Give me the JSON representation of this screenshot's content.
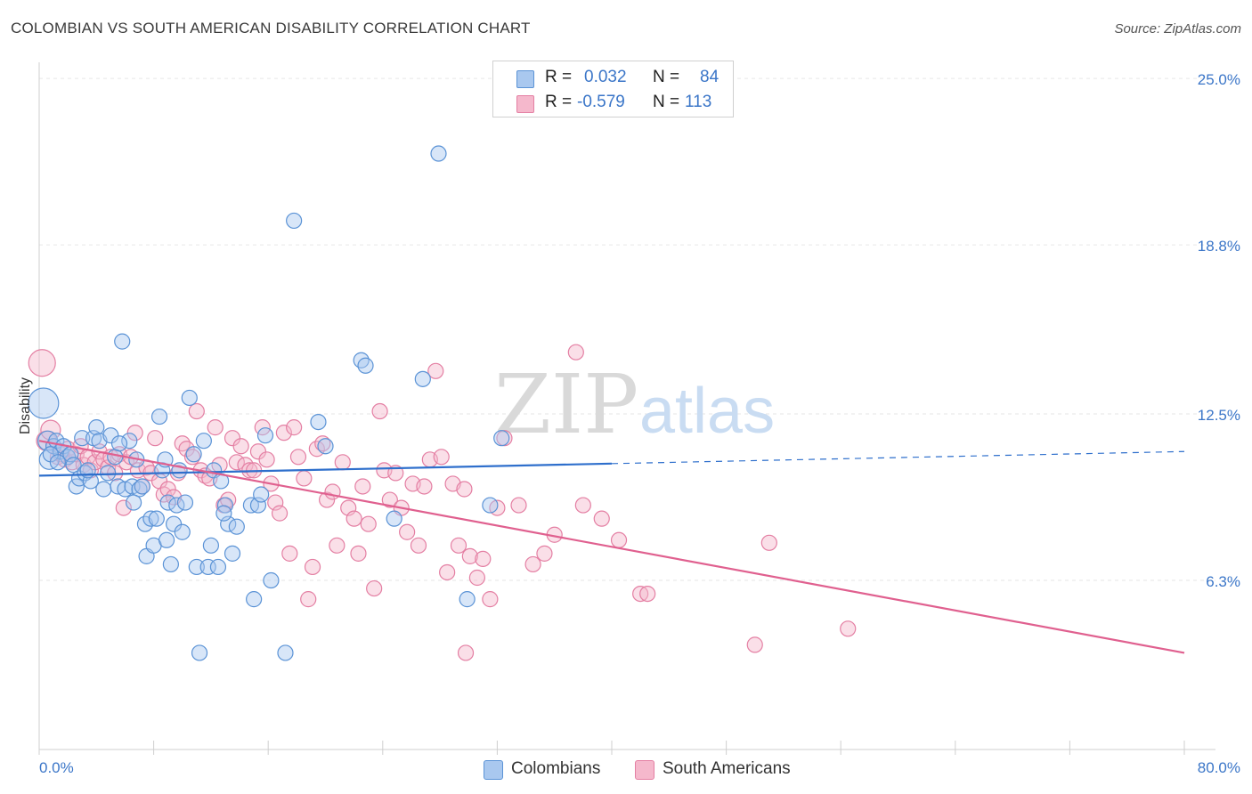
{
  "header": {
    "title": "COLOMBIAN VS SOUTH AMERICAN DISABILITY CORRELATION CHART",
    "source": "Source: ZipAtlas.com"
  },
  "watermark": {
    "zip": "ZIP",
    "atlas": "atlas"
  },
  "legend_top": {
    "rows": [
      {
        "r_label": "R =",
        "r_value": "0.032",
        "n_label": "N =",
        "n_value": "84"
      },
      {
        "r_label": "R =",
        "r_value": "-0.579",
        "n_label": "N =",
        "n_value": "113"
      }
    ]
  },
  "legend_bottom": {
    "items": [
      {
        "label": "Colombians"
      },
      {
        "label": "South Americans"
      }
    ]
  },
  "colors": {
    "blue_fill": "#a9c8ef",
    "blue_stroke": "#5b93d6",
    "blue_line": "#2e6fcc",
    "pink_fill": "#f5b8cc",
    "pink_stroke": "#e47fa3",
    "pink_line": "#e0608f",
    "axis_text": "#3b76c8",
    "grid": "#e6e6e6"
  },
  "chart_data": {
    "type": "scatter",
    "title": "COLOMBIAN VS SOUTH AMERICAN DISABILITY CORRELATION CHART",
    "ylabel": "Disability",
    "xlabel": "",
    "xlim": [
      0,
      80
    ],
    "ylim": [
      0,
      25.6
    ],
    "x_tick_labels": [
      "0.0%",
      "80.0%"
    ],
    "y_tick_values": [
      6.3,
      12.5,
      18.8,
      25.0
    ],
    "y_tick_labels": [
      "6.3%",
      "12.5%",
      "18.8%",
      "25.0%"
    ],
    "grid": true,
    "legend_placement": "top-center",
    "series": [
      {
        "name": "Colombians",
        "r": 0.032,
        "n": 84,
        "trend": {
          "x": [
            0,
            40
          ],
          "y": [
            10.2,
            10.65
          ],
          "dashed_to_x": 80,
          "dashed_y": 11.1
        },
        "points": [
          [
            0.3,
            12.9,
            4
          ],
          [
            0.6,
            11.5,
            2
          ],
          [
            0.7,
            10.8,
            2
          ],
          [
            1.0,
            11.3,
            1
          ],
          [
            1.2,
            11.5,
            1
          ],
          [
            1.5,
            11.1,
            1
          ],
          [
            1.7,
            11.3,
            1
          ],
          [
            2.0,
            10.9,
            1
          ],
          [
            2.2,
            11.0,
            1
          ],
          [
            2.4,
            10.6,
            1
          ],
          [
            2.6,
            9.8,
            1
          ],
          [
            2.8,
            10.1,
            1
          ],
          [
            3.0,
            11.6,
            1
          ],
          [
            3.2,
            10.3,
            1
          ],
          [
            3.6,
            10.0,
            1
          ],
          [
            3.8,
            11.6,
            1
          ],
          [
            4.0,
            12.0,
            1
          ],
          [
            4.2,
            11.5,
            1
          ],
          [
            4.5,
            9.7,
            1
          ],
          [
            4.8,
            10.3,
            1
          ],
          [
            5.0,
            11.7,
            1
          ],
          [
            5.3,
            10.9,
            1
          ],
          [
            5.5,
            9.8,
            1
          ],
          [
            5.8,
            15.2,
            1
          ],
          [
            6.0,
            9.7,
            1
          ],
          [
            6.3,
            11.5,
            1
          ],
          [
            6.5,
            9.8,
            1
          ],
          [
            6.8,
            10.8,
            1
          ],
          [
            7.0,
            9.7,
            1
          ],
          [
            7.2,
            9.8,
            1
          ],
          [
            7.4,
            8.4,
            1
          ],
          [
            7.5,
            7.2,
            1
          ],
          [
            7.8,
            8.6,
            1
          ],
          [
            8.0,
            7.6,
            1
          ],
          [
            8.2,
            8.6,
            1
          ],
          [
            8.4,
            12.4,
            1
          ],
          [
            8.6,
            10.4,
            1
          ],
          [
            8.8,
            10.8,
            1
          ],
          [
            9.0,
            9.2,
            1
          ],
          [
            9.2,
            6.9,
            1
          ],
          [
            9.4,
            8.4,
            1
          ],
          [
            9.6,
            9.1,
            1
          ],
          [
            9.8,
            10.4,
            1
          ],
          [
            10.0,
            8.1,
            1
          ],
          [
            10.2,
            9.2,
            1
          ],
          [
            10.5,
            13.1,
            1
          ],
          [
            10.8,
            11.0,
            1
          ],
          [
            11.0,
            6.8,
            1
          ],
          [
            11.2,
            3.6,
            1
          ],
          [
            11.5,
            11.5,
            1
          ],
          [
            11.8,
            6.8,
            1
          ],
          [
            12.0,
            7.6,
            1
          ],
          [
            12.2,
            10.4,
            1
          ],
          [
            12.5,
            6.8,
            1
          ],
          [
            12.7,
            10.0,
            1
          ],
          [
            13.0,
            9.1,
            1
          ],
          [
            13.2,
            8.4,
            1
          ],
          [
            13.5,
            7.3,
            1
          ],
          [
            13.8,
            8.3,
            1
          ],
          [
            14.8,
            9.1,
            1
          ],
          [
            15.0,
            5.6,
            1
          ],
          [
            15.3,
            9.1,
            1
          ],
          [
            15.5,
            9.5,
            1
          ],
          [
            15.8,
            11.7,
            1
          ],
          [
            16.2,
            6.3,
            1
          ],
          [
            17.2,
            3.6,
            1
          ],
          [
            17.8,
            19.7,
            1
          ],
          [
            19.5,
            12.2,
            1
          ],
          [
            20.0,
            11.3,
            1
          ],
          [
            22.5,
            14.5,
            1
          ],
          [
            22.8,
            14.3,
            1
          ],
          [
            24.8,
            8.6,
            1
          ],
          [
            26.8,
            13.8,
            1
          ],
          [
            27.9,
            22.2,
            1
          ],
          [
            29.9,
            5.6,
            1
          ],
          [
            31.5,
            9.1,
            1
          ],
          [
            32.3,
            11.6,
            1
          ],
          [
            0.8,
            11.0,
            1
          ],
          [
            1.3,
            10.7,
            1
          ],
          [
            3.4,
            10.4,
            1
          ],
          [
            5.6,
            11.4,
            1
          ],
          [
            6.6,
            9.2,
            1
          ],
          [
            8.9,
            7.8,
            1
          ],
          [
            12.9,
            8.8,
            1
          ]
        ]
      },
      {
        "name": "South Americans",
        "r": -0.579,
        "n": 113,
        "trend": {
          "x": [
            0,
            80
          ],
          "y": [
            11.5,
            3.6
          ]
        },
        "points": [
          [
            0.2,
            14.4,
            3
          ],
          [
            0.5,
            11.5,
            2
          ],
          [
            0.8,
            11.9,
            2
          ],
          [
            1.0,
            11.3,
            1
          ],
          [
            1.3,
            10.9,
            1
          ],
          [
            1.5,
            11.0,
            1
          ],
          [
            1.8,
            10.8,
            1
          ],
          [
            2.0,
            11.2,
            1
          ],
          [
            2.3,
            10.7,
            1
          ],
          [
            2.6,
            11.0,
            1
          ],
          [
            2.9,
            11.3,
            1
          ],
          [
            3.1,
            10.6,
            1
          ],
          [
            3.4,
            10.9,
            1
          ],
          [
            3.6,
            10.4,
            1
          ],
          [
            3.9,
            10.7,
            1
          ],
          [
            4.2,
            11.1,
            1
          ],
          [
            4.5,
            10.8,
            1
          ],
          [
            4.8,
            10.5,
            1
          ],
          [
            5.0,
            10.9,
            1
          ],
          [
            5.3,
            10.3,
            1
          ],
          [
            5.6,
            11.0,
            1
          ],
          [
            5.9,
            9.0,
            1
          ],
          [
            6.1,
            10.7,
            1
          ],
          [
            6.4,
            10.9,
            1
          ],
          [
            6.7,
            11.8,
            1
          ],
          [
            6.9,
            10.4,
            1
          ],
          [
            7.2,
            9.8,
            1
          ],
          [
            7.5,
            10.5,
            1
          ],
          [
            7.8,
            10.3,
            1
          ],
          [
            8.1,
            11.6,
            1
          ],
          [
            8.4,
            10.0,
            1
          ],
          [
            8.7,
            9.5,
            1
          ],
          [
            9.0,
            9.7,
            1
          ],
          [
            9.4,
            9.4,
            1
          ],
          [
            9.7,
            10.3,
            1
          ],
          [
            10.0,
            11.4,
            1
          ],
          [
            10.3,
            11.2,
            1
          ],
          [
            10.7,
            10.9,
            1
          ],
          [
            11.0,
            12.6,
            1
          ],
          [
            11.3,
            10.4,
            1
          ],
          [
            11.6,
            10.2,
            1
          ],
          [
            11.9,
            10.1,
            1
          ],
          [
            12.3,
            12.0,
            1
          ],
          [
            12.6,
            10.6,
            1
          ],
          [
            12.9,
            9.1,
            1
          ],
          [
            13.2,
            9.3,
            1
          ],
          [
            13.5,
            11.6,
            1
          ],
          [
            13.8,
            10.7,
            1
          ],
          [
            14.1,
            11.3,
            1
          ],
          [
            14.4,
            10.6,
            1
          ],
          [
            14.7,
            10.4,
            1
          ],
          [
            15.0,
            10.4,
            1
          ],
          [
            15.3,
            11.1,
            1
          ],
          [
            15.6,
            12.0,
            1
          ],
          [
            15.9,
            10.8,
            1
          ],
          [
            16.2,
            9.9,
            1
          ],
          [
            16.5,
            9.2,
            1
          ],
          [
            16.8,
            8.8,
            1
          ],
          [
            17.1,
            11.8,
            1
          ],
          [
            17.5,
            7.3,
            1
          ],
          [
            17.8,
            12.0,
            1
          ],
          [
            18.1,
            10.9,
            1
          ],
          [
            18.5,
            10.1,
            1
          ],
          [
            18.8,
            5.6,
            1
          ],
          [
            19.1,
            6.8,
            1
          ],
          [
            19.4,
            11.2,
            1
          ],
          [
            19.8,
            11.4,
            1
          ],
          [
            20.1,
            9.3,
            1
          ],
          [
            20.5,
            9.6,
            1
          ],
          [
            20.8,
            7.6,
            1
          ],
          [
            21.2,
            10.7,
            1
          ],
          [
            21.6,
            9.0,
            1
          ],
          [
            22.0,
            8.6,
            1
          ],
          [
            22.3,
            7.3,
            1
          ],
          [
            22.6,
            9.8,
            1
          ],
          [
            23.0,
            8.4,
            1
          ],
          [
            23.4,
            6.0,
            1
          ],
          [
            23.8,
            12.6,
            1
          ],
          [
            24.1,
            10.4,
            1
          ],
          [
            24.5,
            9.3,
            1
          ],
          [
            24.9,
            10.3,
            1
          ],
          [
            25.3,
            9.0,
            1
          ],
          [
            25.7,
            8.1,
            1
          ],
          [
            26.1,
            9.9,
            1
          ],
          [
            26.5,
            7.6,
            1
          ],
          [
            26.9,
            9.8,
            1
          ],
          [
            27.3,
            10.8,
            1
          ],
          [
            27.7,
            14.1,
            1
          ],
          [
            28.1,
            10.9,
            1
          ],
          [
            28.5,
            6.6,
            1
          ],
          [
            28.9,
            9.9,
            1
          ],
          [
            29.3,
            7.6,
            1
          ],
          [
            29.7,
            9.7,
            1
          ],
          [
            30.1,
            7.2,
            1
          ],
          [
            30.6,
            6.4,
            1
          ],
          [
            31.0,
            7.1,
            1
          ],
          [
            31.5,
            5.6,
            1
          ],
          [
            32.0,
            9.0,
            1
          ],
          [
            32.5,
            11.6,
            1
          ],
          [
            33.5,
            9.1,
            1
          ],
          [
            34.5,
            6.9,
            1
          ],
          [
            35.3,
            7.3,
            1
          ],
          [
            36.0,
            8.0,
            1
          ],
          [
            37.5,
            14.8,
            1
          ],
          [
            38.0,
            9.1,
            1
          ],
          [
            39.3,
            8.6,
            1
          ],
          [
            40.5,
            7.8,
            1
          ],
          [
            42.0,
            5.8,
            1
          ],
          [
            42.5,
            5.8,
            1
          ],
          [
            50.0,
            3.9,
            1
          ],
          [
            51.0,
            7.7,
            1
          ],
          [
            56.5,
            4.5,
            1
          ],
          [
            29.8,
            3.6,
            1
          ]
        ]
      }
    ]
  }
}
